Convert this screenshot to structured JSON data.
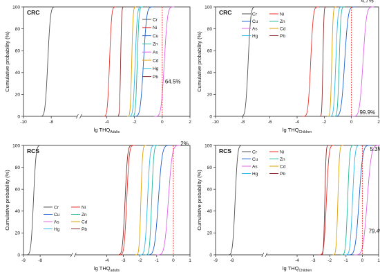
{
  "chart_data": [
    {
      "type": "line",
      "title": "CRC",
      "xlabel_main": "lg THQ",
      "xlabel_sub": "Adults",
      "ylabel": "Cumulative probability (%)",
      "xlim": [
        -10,
        2
      ],
      "ylim": [
        0,
        100
      ],
      "xticks": [
        "-10",
        "-8",
        "-4",
        "-2",
        "0",
        "2"
      ],
      "yticks": [
        "0",
        "20",
        "40",
        "60",
        "80",
        "100"
      ],
      "axis_break": true,
      "reference_line": {
        "x": 0,
        "color": "#e0201b"
      },
      "legend_position": "right, single column",
      "annotations": [
        {
          "text": "64.5%",
          "x": 0.1,
          "y": 30
        }
      ],
      "series": [
        {
          "name": "Cr",
          "color": "#505050",
          "center": -8.25,
          "spread": 0.15
        },
        {
          "name": "Ni",
          "color": "#e8322c",
          "center": -3.8,
          "spread": 0.12
        },
        {
          "name": "Cu",
          "color": "#1a5fd0",
          "center": -1.35,
          "spread": 0.18
        },
        {
          "name": "Zn",
          "color": "#20b89a",
          "center": -1.8,
          "spread": 0.1
        },
        {
          "name": "As",
          "color": "#e060e8",
          "center": 0.15,
          "spread": 0.18
        },
        {
          "name": "Cd",
          "color": "#e0a000",
          "center": -2.2,
          "spread": 0.08
        },
        {
          "name": "Hg",
          "color": "#30b8e8",
          "center": -1.95,
          "spread": 0.12
        },
        {
          "name": "Pb",
          "color": "#8a2a2a",
          "center": -3.0,
          "spread": 0.06
        }
      ]
    },
    {
      "type": "line",
      "title": "CRC",
      "xlabel_main": "lg THQ",
      "xlabel_sub": "Children",
      "ylabel": "Cumulative probability (%)",
      "xlim": [
        -10,
        2
      ],
      "ylim": [
        0,
        100
      ],
      "xticks": [
        "-10",
        "-8",
        "-6",
        "-4",
        "-2",
        "0",
        "2"
      ],
      "yticks": [
        "0",
        "20",
        "40",
        "60",
        "80",
        "100"
      ],
      "axis_break": false,
      "reference_line": {
        "x": 0,
        "color": "#e0201b"
      },
      "legend_position": "top-left, two columns",
      "annotations": [
        {
          "text": "4.7%",
          "x": 0.6,
          "y": 104
        },
        {
          "text": "99.9%",
          "x": 0.6,
          "y": 2
        }
      ],
      "series": [
        {
          "name": "Cr",
          "color": "#505050",
          "center": -7.6,
          "spread": 0.15
        },
        {
          "name": "Ni",
          "color": "#e8322c",
          "center": -3.0,
          "spread": 0.15
        },
        {
          "name": "Cu",
          "color": "#1a5fd0",
          "center": -0.5,
          "spread": 0.2
        },
        {
          "name": "Zn",
          "color": "#20b89a",
          "center": -0.9,
          "spread": 0.1
        },
        {
          "name": "As",
          "color": "#e060e8",
          "center": 0.85,
          "spread": 0.2
        },
        {
          "name": "Cd",
          "color": "#e0a000",
          "center": -1.45,
          "spread": 0.08
        },
        {
          "name": "Hg",
          "color": "#30b8e8",
          "center": -1.15,
          "spread": 0.12
        },
        {
          "name": "Pb",
          "color": "#8a2a2a",
          "center": -2.1,
          "spread": 0.06
        }
      ]
    },
    {
      "type": "line",
      "title": "RCS",
      "xlabel_main": "lg THQ",
      "xlabel_sub": "adults",
      "ylabel": "Cumulative probability (%)",
      "xlim": [
        -9,
        1
      ],
      "ylim": [
        0,
        100
      ],
      "xticks": [
        "-9",
        "-8",
        "-4",
        "-3",
        "-2",
        "-1",
        "0",
        "1"
      ],
      "yticks": [
        "0",
        "20",
        "40",
        "60",
        "80",
        "100"
      ],
      "axis_break": true,
      "reference_line": {
        "x": 0,
        "color": "#e0201b"
      },
      "legend_position": "bottom-left, two columns",
      "annotations": [
        {
          "text": "2%",
          "x": 0.35,
          "y": 100
        }
      ],
      "series": [
        {
          "name": "Cr",
          "color": "#505050",
          "center": -8.4,
          "spread": 0.12
        },
        {
          "name": "Ni",
          "color": "#e8322c",
          "center": -2.8,
          "spread": 0.12
        },
        {
          "name": "Cu",
          "color": "#1a5fd0",
          "center": -0.9,
          "spread": 0.18
        },
        {
          "name": "Zn",
          "color": "#20b89a",
          "center": -1.3,
          "spread": 0.1
        },
        {
          "name": "As",
          "color": "#e060e8",
          "center": -0.3,
          "spread": 0.18
        },
        {
          "name": "Cd",
          "color": "#e0a000",
          "center": -1.95,
          "spread": 0.08
        },
        {
          "name": "Hg",
          "color": "#30b8e8",
          "center": -1.55,
          "spread": 0.12
        },
        {
          "name": "Pb",
          "color": "#8a2a2a",
          "center": -2.9,
          "spread": 0.12
        }
      ]
    },
    {
      "type": "line",
      "title": "RCS",
      "xlabel_main": "lg THQ",
      "xlabel_sub": "Children",
      "ylabel": "Cumulative probability (%)",
      "xlim": [
        -9,
        1
      ],
      "ylim": [
        0,
        100
      ],
      "xticks": [
        "-9",
        "-8",
        "-4",
        "-3",
        "-2",
        "-1",
        "0",
        "1"
      ],
      "yticks": [
        "0",
        "20",
        "40",
        "60",
        "80",
        "100"
      ],
      "axis_break": true,
      "reference_line": {
        "x": 0,
        "color": "#e0201b"
      },
      "legend_position": "top-left, two columns",
      "annotations": [
        {
          "text": "5.3%",
          "x": 0.3,
          "y": 95
        },
        {
          "text": "79.4%",
          "x": 0.3,
          "y": 20
        }
      ],
      "series": [
        {
          "name": "Cr",
          "color": "#505050",
          "center": -7.8,
          "spread": 0.12
        },
        {
          "name": "Ni",
          "color": "#e8322c",
          "center": -2.2,
          "spread": 0.12
        },
        {
          "name": "Cu",
          "color": "#1a5fd0",
          "center": -0.2,
          "spread": 0.18
        },
        {
          "name": "Zn",
          "color": "#20b89a",
          "center": -0.9,
          "spread": 0.1
        },
        {
          "name": "As",
          "color": "#e060e8",
          "center": 0.3,
          "spread": 0.2
        },
        {
          "name": "Cd",
          "color": "#e0a000",
          "center": -1.5,
          "spread": 0.08
        },
        {
          "name": "Hg",
          "color": "#30b8e8",
          "center": -0.6,
          "spread": 0.12
        },
        {
          "name": "Pb",
          "color": "#8a2a2a",
          "center": -2.3,
          "spread": 0.06
        }
      ]
    }
  ]
}
